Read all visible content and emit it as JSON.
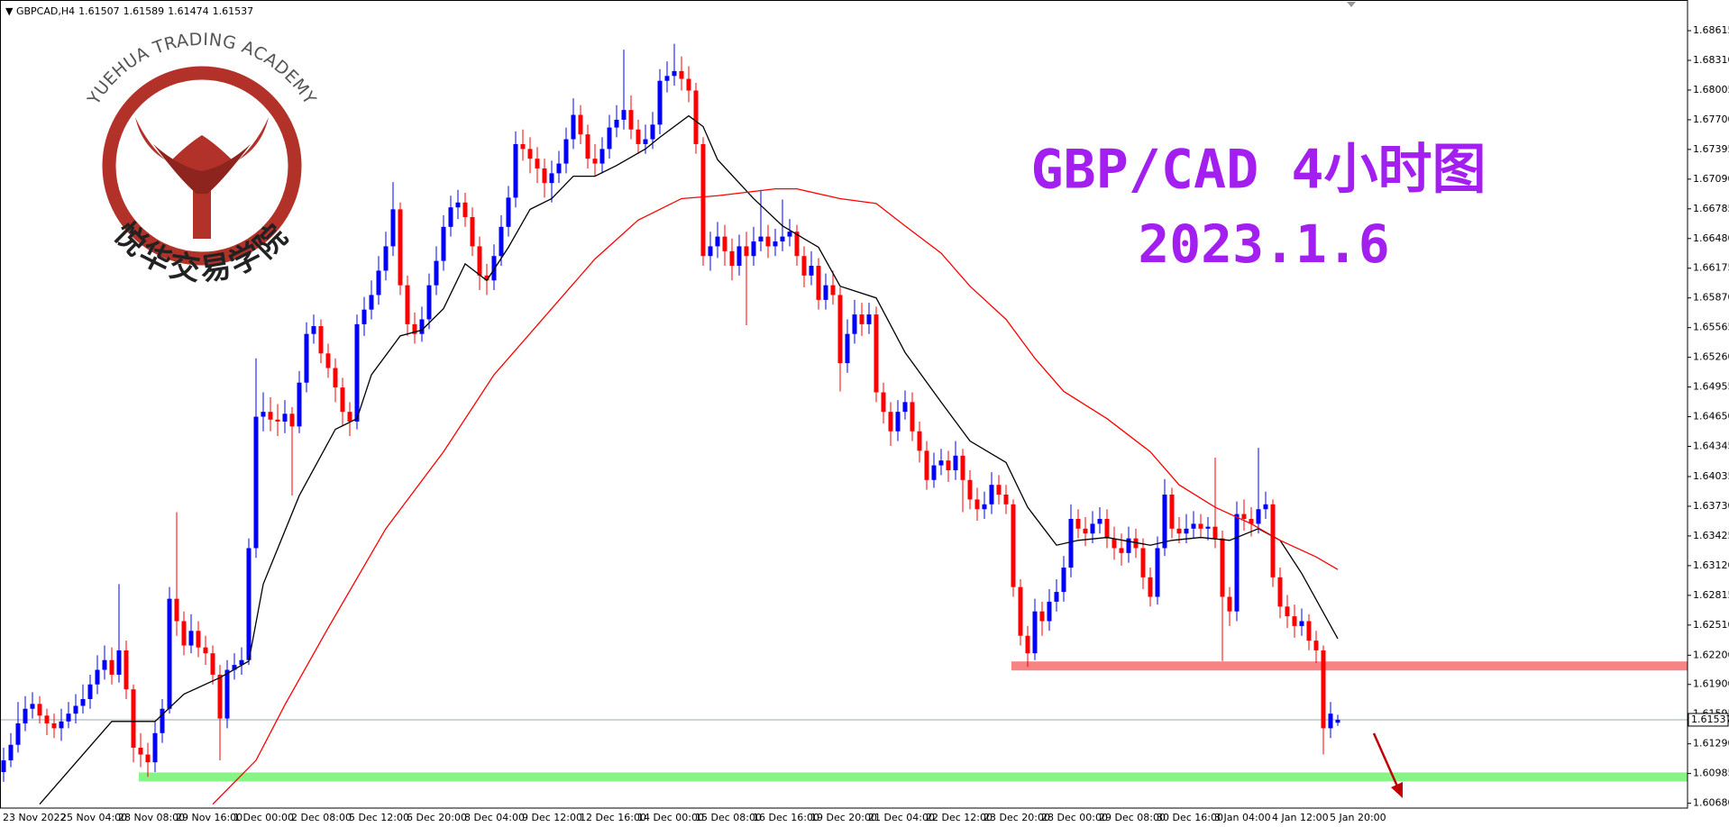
{
  "chart_data": {
    "type": "candlestick",
    "symbol": "GBPCAD,H4",
    "title": "GBP/CAD 4小时图",
    "subtitle": "2023.1.6",
    "up_color": "#0000ff",
    "down_color": "#ff0000",
    "categories": [
      "23 Nov 2022",
      null,
      null,
      null,
      null,
      null,
      null,
      null,
      "25 Nov 04:00",
      null,
      null,
      null,
      null,
      null,
      null,
      null,
      "28 Nov 08:00",
      null,
      null,
      null,
      null,
      null,
      null,
      null,
      "29 Nov 16:00",
      null,
      null,
      null,
      null,
      null,
      null,
      null,
      "1 Dec 00:00",
      null,
      null,
      null,
      null,
      null,
      null,
      null,
      "2 Dec 08:00",
      null,
      null,
      null,
      null,
      null,
      null,
      null,
      "5 Dec 12:00",
      null,
      null,
      null,
      null,
      null,
      null,
      null,
      "6 Dec 20:00",
      null,
      null,
      null,
      null,
      null,
      null,
      null,
      "8 Dec 04:00",
      null,
      null,
      null,
      null,
      null,
      null,
      null,
      "9 Dec 12:00",
      null,
      null,
      null,
      null,
      null,
      null,
      null,
      "12 Dec 16:00",
      null,
      null,
      null,
      null,
      null,
      null,
      null,
      "14 Dec 00:00",
      null,
      null,
      null,
      null,
      null,
      null,
      null,
      "15 Dec 08:00",
      null,
      null,
      null,
      null,
      null,
      null,
      null,
      "16 Dec 16:00",
      null,
      null,
      null,
      null,
      null,
      null,
      null,
      "19 Dec 20:00",
      null,
      null,
      null,
      null,
      null,
      null,
      null,
      "21 Dec 04:00",
      null,
      null,
      null,
      null,
      null,
      null,
      null,
      "22 Dec 12:00",
      null,
      null,
      null,
      null,
      null,
      null,
      null,
      "23 Dec 20:00",
      null,
      null,
      null,
      null,
      null,
      null,
      null,
      "28 Dec 00:00",
      null,
      null,
      null,
      null,
      null,
      null,
      null,
      "29 Dec 08:00",
      null,
      null,
      null,
      null,
      null,
      null,
      null,
      "30 Dec 16:00",
      null,
      null,
      null,
      null,
      null,
      null,
      null,
      "3 Jan 04:00",
      null,
      null,
      null,
      null,
      null,
      null,
      null,
      "4 Jan 12:00",
      null,
      null,
      null,
      null,
      null,
      null,
      null,
      "5 Jan 20:00",
      null
    ],
    "open": [
      1.61,
      1.6112,
      1.6128,
      1.615,
      1.6165,
      1.617,
      1.6158,
      1.615,
      1.6145,
      1.6152,
      1.616,
      1.6168,
      1.6175,
      1.619,
      1.6205,
      1.6215,
      1.62,
      1.6225,
      1.6185,
      1.6125,
      1.6118,
      1.611,
      1.614,
      1.6165,
      1.6278,
      1.6255,
      1.623,
      1.6245,
      1.6228,
      1.6222,
      1.62,
      1.6155,
      1.6205,
      1.621,
      1.6215,
      1.633,
      1.6465,
      1.647,
      1.6462,
      1.646,
      1.6468,
      1.6455,
      1.65,
      1.655,
      1.6558,
      1.653,
      1.6515,
      1.6495,
      1.647,
      1.646,
      1.656,
      1.6575,
      1.659,
      1.6615,
      1.664,
      1.6678,
      1.66,
      1.656,
      1.655,
      1.6565,
      1.66,
      1.6625,
      1.666,
      1.668,
      1.6685,
      1.667,
      1.664,
      1.661,
      1.6605,
      1.663,
      1.666,
      1.669,
      1.6745,
      1.674,
      1.673,
      1.672,
      1.6705,
      1.6715,
      1.6725,
      1.675,
      1.6775,
      1.6755,
      1.673,
      1.6725,
      1.674,
      1.6762,
      1.677,
      1.678,
      1.676,
      1.6745,
      1.675,
      1.6765,
      1.681,
      1.6815,
      1.682,
      1.6812,
      1.68,
      1.6745,
      1.663,
      1.664,
      1.665,
      1.6635,
      1.662,
      1.664,
      1.663,
      1.6645,
      1.665,
      1.664,
      1.6645,
      1.665,
      1.6655,
      1.663,
      1.661,
      1.662,
      1.6585,
      1.66,
      1.659,
      1.652,
      1.655,
      1.657,
      1.656,
      1.657,
      1.649,
      1.647,
      1.645,
      1.647,
      1.648,
      1.645,
      1.643,
      1.64,
      1.6415,
      1.642,
      1.641,
      1.6425,
      1.64,
      1.638,
      1.637,
      1.6375,
      1.6395,
      1.6385,
      1.6375,
      1.629,
      1.624,
      1.6222,
      1.6265,
      1.6255,
      1.6275,
      1.6285,
      1.631,
      1.636,
      1.635,
      1.6345,
      1.6355,
      1.636,
      1.634,
      1.633,
      1.6325,
      1.634,
      1.633,
      1.63,
      1.628,
      1.633,
      1.6385,
      1.635,
      1.6345,
      1.635,
      1.6355,
      1.635,
      1.6352,
      1.634,
      1.628,
      1.6265,
      1.6365,
      1.636,
      1.6355,
      1.637,
      1.6375,
      1.63,
      1.627,
      1.626,
      1.625,
      1.6255,
      1.6235,
      1.6225,
      1.6145,
      1.61507
    ],
    "high": [
      1.6125,
      1.614,
      1.6172,
      1.6178,
      1.6182,
      1.6178,
      1.6165,
      1.616,
      1.6165,
      1.6172,
      1.618,
      1.619,
      1.62,
      1.622,
      1.623,
      1.6228,
      1.6293,
      1.6235,
      1.619,
      1.614,
      1.613,
      1.6152,
      1.6175,
      1.629,
      1.6367,
      1.6265,
      1.6262,
      1.6255,
      1.624,
      1.623,
      1.621,
      1.6215,
      1.6222,
      1.6228,
      1.634,
      1.6525,
      1.649,
      1.6485,
      1.6478,
      1.6482,
      1.6475,
      1.6512,
      1.6562,
      1.657,
      1.6565,
      1.654,
      1.6525,
      1.6505,
      1.648,
      1.657,
      1.6588,
      1.6605,
      1.663,
      1.6655,
      1.6706,
      1.6685,
      1.661,
      1.6572,
      1.6578,
      1.6612,
      1.664,
      1.6672,
      1.6692,
      1.6698,
      1.6695,
      1.668,
      1.665,
      1.6622,
      1.6642,
      1.6672,
      1.6702,
      1.6758,
      1.676,
      1.6752,
      1.6742,
      1.673,
      1.6728,
      1.6738,
      1.6762,
      1.6792,
      1.6785,
      1.6765,
      1.6745,
      1.6752,
      1.6775,
      1.6785,
      1.6842,
      1.6795,
      1.677,
      1.6765,
      1.6778,
      1.6822,
      1.683,
      1.6848,
      1.6835,
      1.6825,
      1.6808,
      1.6752,
      1.6655,
      1.6665,
      1.6662,
      1.6648,
      1.6652,
      1.6655,
      1.666,
      1.6698,
      1.6662,
      1.6658,
      1.6688,
      1.6668,
      1.6662,
      1.664,
      1.6635,
      1.6628,
      1.6612,
      1.6615,
      1.6598,
      1.6565,
      1.6585,
      1.6582,
      1.6582,
      1.6578,
      1.65,
      1.648,
      1.6482,
      1.6492,
      1.649,
      1.646,
      1.644,
      1.6428,
      1.6432,
      1.643,
      1.644,
      1.6432,
      1.641,
      1.6392,
      1.6388,
      1.6408,
      1.6405,
      1.6395,
      1.638,
      1.6298,
      1.625,
      1.6278,
      1.6275,
      1.6288,
      1.6298,
      1.6322,
      1.6375,
      1.637,
      1.6362,
      1.6368,
      1.6372,
      1.637,
      1.6352,
      1.6345,
      1.6352,
      1.635,
      1.634,
      1.631,
      1.6342,
      1.6401,
      1.6392,
      1.6362,
      1.6365,
      1.6368,
      1.6365,
      1.6362,
      1.6423,
      1.6348,
      1.629,
      1.6378,
      1.638,
      1.6372,
      1.6433,
      1.6388,
      1.638,
      1.631,
      1.6282,
      1.6272,
      1.6268,
      1.6262,
      1.6245,
      1.623,
      1.6172,
      1.61589
    ],
    "low": [
      1.609,
      1.6105,
      1.612,
      1.6142,
      1.6155,
      1.615,
      1.6138,
      1.6135,
      1.6132,
      1.6145,
      1.615,
      1.616,
      1.6165,
      1.618,
      1.6195,
      1.619,
      1.6192,
      1.6175,
      1.611,
      1.6105,
      1.6095,
      1.61,
      1.613,
      1.616,
      1.624,
      1.622,
      1.6222,
      1.6218,
      1.621,
      1.619,
      1.6112,
      1.6145,
      1.6195,
      1.62,
      1.621,
      1.632,
      1.645,
      1.645,
      1.6445,
      1.6448,
      1.6384,
      1.6448,
      1.649,
      1.654,
      1.652,
      1.6505,
      1.648,
      1.6455,
      1.6445,
      1.6452,
      1.6548,
      1.6565,
      1.658,
      1.6605,
      1.663,
      1.659,
      1.6548,
      1.654,
      1.6542,
      1.6555,
      1.659,
      1.6615,
      1.665,
      1.6668,
      1.666,
      1.663,
      1.6595,
      1.659,
      1.6595,
      1.662,
      1.665,
      1.668,
      1.6728,
      1.6715,
      1.6705,
      1.669,
      1.6685,
      1.6705,
      1.6715,
      1.674,
      1.6745,
      1.672,
      1.6712,
      1.6715,
      1.673,
      1.6752,
      1.676,
      1.675,
      1.6735,
      1.6735,
      1.674,
      1.6755,
      1.6798,
      1.6805,
      1.68,
      1.6788,
      1.6735,
      1.662,
      1.6615,
      1.6628,
      1.662,
      1.6605,
      1.661,
      1.6559,
      1.662,
      1.6635,
      1.6628,
      1.663,
      1.6635,
      1.664,
      1.662,
      1.6598,
      1.66,
      1.6575,
      1.6575,
      1.658,
      1.6491,
      1.651,
      1.654,
      1.6548,
      1.655,
      1.648,
      1.6458,
      1.6435,
      1.644,
      1.6462,
      1.644,
      1.6418,
      1.639,
      1.6392,
      1.6405,
      1.6398,
      1.64,
      1.6367,
      1.637,
      1.6358,
      1.636,
      1.6365,
      1.6375,
      1.6365,
      1.628,
      1.623,
      1.6208,
      1.6215,
      1.624,
      1.6245,
      1.6265,
      1.6275,
      1.63,
      1.634,
      1.6332,
      1.6335,
      1.6345,
      1.633,
      1.6318,
      1.6312,
      1.6315,
      1.632,
      1.6288,
      1.627,
      1.6272,
      1.6322,
      1.634,
      1.6335,
      1.6335,
      1.634,
      1.634,
      1.6338,
      1.633,
      1.6214,
      1.625,
      1.6255,
      1.6348,
      1.6342,
      1.6345,
      1.636,
      1.629,
      1.6258,
      1.6248,
      1.6238,
      1.624,
      1.6225,
      1.6212,
      1.6118,
      1.6135,
      1.61474
    ],
    "close": [
      1.6112,
      1.6128,
      1.615,
      1.6165,
      1.617,
      1.6158,
      1.615,
      1.6145,
      1.6152,
      1.616,
      1.6168,
      1.6175,
      1.619,
      1.6205,
      1.6215,
      1.62,
      1.6225,
      1.6185,
      1.6125,
      1.6118,
      1.611,
      1.614,
      1.6165,
      1.6278,
      1.6255,
      1.623,
      1.6245,
      1.6228,
      1.6222,
      1.62,
      1.6155,
      1.6205,
      1.621,
      1.6215,
      1.633,
      1.6465,
      1.647,
      1.6462,
      1.646,
      1.6468,
      1.6455,
      1.65,
      1.655,
      1.6558,
      1.653,
      1.6515,
      1.6495,
      1.647,
      1.646,
      1.656,
      1.6575,
      1.659,
      1.6615,
      1.664,
      1.6678,
      1.66,
      1.656,
      1.655,
      1.6565,
      1.66,
      1.6625,
      1.666,
      1.668,
      1.6685,
      1.667,
      1.664,
      1.661,
      1.6605,
      1.663,
      1.666,
      1.669,
      1.6745,
      1.674,
      1.673,
      1.672,
      1.6705,
      1.6715,
      1.6725,
      1.675,
      1.6775,
      1.6755,
      1.673,
      1.6725,
      1.674,
      1.6762,
      1.677,
      1.678,
      1.676,
      1.6745,
      1.675,
      1.6765,
      1.681,
      1.6815,
      1.682,
      1.6812,
      1.68,
      1.6745,
      1.663,
      1.664,
      1.665,
      1.6635,
      1.662,
      1.664,
      1.663,
      1.6645,
      1.665,
      1.664,
      1.6645,
      1.665,
      1.6655,
      1.663,
      1.661,
      1.662,
      1.6585,
      1.66,
      1.659,
      1.652,
      1.655,
      1.657,
      1.656,
      1.657,
      1.649,
      1.647,
      1.645,
      1.647,
      1.648,
      1.645,
      1.643,
      1.64,
      1.6415,
      1.642,
      1.641,
      1.6425,
      1.64,
      1.638,
      1.637,
      1.6375,
      1.6395,
      1.6385,
      1.6375,
      1.629,
      1.624,
      1.6222,
      1.6265,
      1.6255,
      1.6275,
      1.6285,
      1.631,
      1.636,
      1.635,
      1.6345,
      1.6355,
      1.636,
      1.634,
      1.633,
      1.6325,
      1.634,
      1.633,
      1.63,
      1.628,
      1.633,
      1.6385,
      1.635,
      1.6345,
      1.635,
      1.6355,
      1.635,
      1.6352,
      1.634,
      1.628,
      1.6265,
      1.6365,
      1.636,
      1.6355,
      1.637,
      1.6375,
      1.63,
      1.627,
      1.626,
      1.625,
      1.6255,
      1.6235,
      1.6225,
      1.6145,
      1.616,
      1.61537
    ],
    "lines": [
      {
        "color": "#000000",
        "x": [
          5,
          15,
          21,
          25,
          30,
          34,
          36,
          41,
          46,
          49,
          51,
          55,
          58,
          61,
          64,
          67,
          70,
          73,
          76,
          79,
          82,
          85,
          89,
          91,
          95,
          97,
          99,
          104,
          108,
          113,
          116,
          121,
          125,
          130,
          134,
          139,
          142,
          146,
          149,
          153,
          159,
          162,
          166,
          170,
          174,
          177,
          180,
          185
        ],
        "values": [
          1.6067,
          1.6152,
          1.6152,
          1.618,
          1.6197,
          1.6214,
          1.6293,
          1.6384,
          1.6452,
          1.6463,
          1.6508,
          1.6548,
          1.6554,
          1.6576,
          1.6622,
          1.6605,
          1.6639,
          1.6678,
          1.6689,
          1.6712,
          1.6712,
          1.6723,
          1.674,
          1.6752,
          1.6774,
          1.6763,
          1.6729,
          1.6689,
          1.6661,
          1.6639,
          1.6599,
          1.6587,
          1.6531,
          1.648,
          1.644,
          1.6418,
          1.6372,
          1.6333,
          1.6338,
          1.6341,
          1.6333,
          1.6338,
          1.6341,
          1.6338,
          1.635,
          1.6338,
          1.6304,
          1.6237
        ]
      },
      {
        "color": "#ff0000",
        "x": [
          29,
          35,
          39,
          45,
          53,
          61,
          68,
          76,
          82,
          88,
          94,
          99,
          107,
          110,
          116,
          121,
          125,
          130,
          134,
          139,
          143,
          147,
          153,
          159,
          163,
          168,
          173,
          177,
          182,
          185
        ],
        "values": [
          1.6067,
          1.6112,
          1.6169,
          1.6248,
          1.635,
          1.6429,
          1.6508,
          1.6576,
          1.6627,
          1.6667,
          1.6689,
          1.6692,
          1.6699,
          1.6699,
          1.6689,
          1.6684,
          1.6661,
          1.6633,
          1.6599,
          1.6565,
          1.6525,
          1.6491,
          1.6463,
          1.6429,
          1.6395,
          1.6372,
          1.6355,
          1.6338,
          1.6321,
          1.6308
        ]
      }
    ],
    "zones": [
      {
        "value": 1.6209,
        "from": 140,
        "color": "#f78383"
      },
      {
        "value": 1.6095,
        "from": 19,
        "color": "#86f586"
      }
    ],
    "current": 1.61537,
    "ylim": [
      1.6063,
      1.6893
    ],
    "yticks": [
      1.68615,
      {
        "value": 1.6831,
        "label": "1.68310"
      },
      1.68005,
      {
        "value": 1.677,
        "label": "1.67700"
      },
      1.67395,
      {
        "value": 1.6709,
        "label": "1.67090"
      },
      1.66785,
      {
        "value": 1.6648,
        "label": "1.66480"
      },
      1.66175,
      {
        "value": 1.6587,
        "label": "1.65870"
      },
      1.65565,
      {
        "value": 1.6526,
        "label": "1.65260"
      },
      1.64955,
      {
        "value": 1.6465,
        "label": "1.64650"
      },
      1.64345,
      1.64035,
      {
        "value": 1.6373,
        "label": "1.63730"
      },
      1.63425,
      {
        "value": 1.6312,
        "label": "1.63120"
      },
      1.62815,
      {
        "value": 1.6251,
        "label": "1.62510"
      },
      {
        "value": 1.622,
        "label": "1.62200"
      },
      {
        "value": 1.619,
        "label": "1.61900"
      },
      1.61595,
      {
        "value": 1.6129,
        "label": "1.61290"
      },
      1.60985,
      {
        "value": 1.6068,
        "label": "1.60680"
      }
    ]
  },
  "logo": {
    "arc_text": "YUEHUA TRADING ACADEMY",
    "name": "悦华交易学院"
  }
}
